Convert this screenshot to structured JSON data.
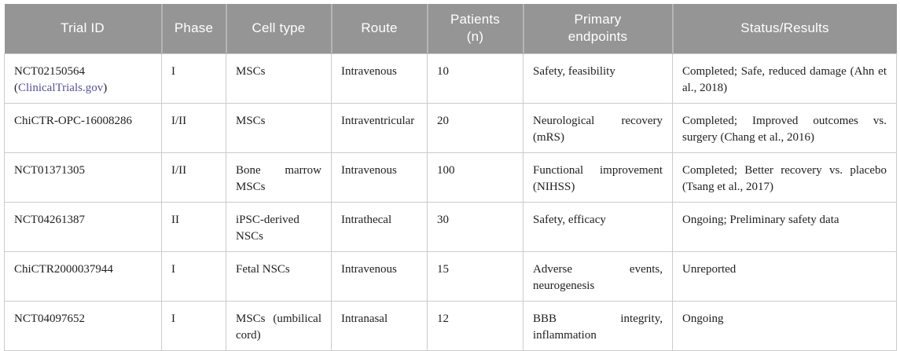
{
  "meta": {
    "header_bg_color": "#959595",
    "header_text_color": "#ffffff",
    "body_text_color": "#212121",
    "border_color": "#cbcbcb",
    "link_color": "#564fa1"
  },
  "table": {
    "columns": [
      {
        "key": "trial_id",
        "label": "Trial ID"
      },
      {
        "key": "phase",
        "label": "Phase"
      },
      {
        "key": "cell_type",
        "label": "Cell type"
      },
      {
        "key": "route",
        "label": "Route"
      },
      {
        "key": "patients",
        "label": "Patients\n(n)"
      },
      {
        "key": "endpoints",
        "label": "Primary\nendpoints"
      },
      {
        "key": "status",
        "label": "Status/Results"
      }
    ],
    "rows": [
      {
        "trial_id": "NCT02150564",
        "link": {
          "prefix": "(",
          "label": "ClinicalTrials.gov",
          "suffix": ")"
        },
        "phase": "I",
        "cell_type": "MSCs",
        "route": "Intravenous",
        "patients": "10",
        "endpoints": "Safety, feasibility",
        "status": "Completed; Safe, reduced damage (Ahn et al., 2018)"
      },
      {
        "trial_id": "ChiCTR-OPC-16008286",
        "phase": "I/II",
        "cell_type": "MSCs",
        "route": "Intraventricular",
        "patients": "20",
        "endpoints": "Neurological recovery (mRS)",
        "status": "Completed; Improved outcomes vs. surgery (Chang et al., 2016)"
      },
      {
        "trial_id": "NCT01371305",
        "phase": "I/II",
        "cell_type": "Bone marrow MSCs",
        "route": "Intravenous",
        "patients": "100",
        "endpoints": "Functional improvement (NIHSS)",
        "status": "Completed; Better recovery vs. placebo (Tsang et al., 2017)"
      },
      {
        "trial_id": "NCT04261387",
        "phase": "II",
        "cell_type": "iPSC-derived NSCs",
        "route": "Intrathecal",
        "patients": "30",
        "endpoints": "Safety, efficacy",
        "status": "Ongoing; Preliminary safety data"
      },
      {
        "trial_id": "ChiCTR2000037944",
        "phase": "I",
        "cell_type": "Fetal NSCs",
        "route": "Intravenous",
        "patients": "15",
        "endpoints": "Adverse events, neurogenesis",
        "status": "Unreported"
      },
      {
        "trial_id": "NCT04097652",
        "phase": "I",
        "cell_type": "MSCs (umbilical cord)",
        "route": "Intranasal",
        "patients": "12",
        "endpoints": "BBB integrity, inflammation",
        "status": "Ongoing"
      }
    ]
  }
}
